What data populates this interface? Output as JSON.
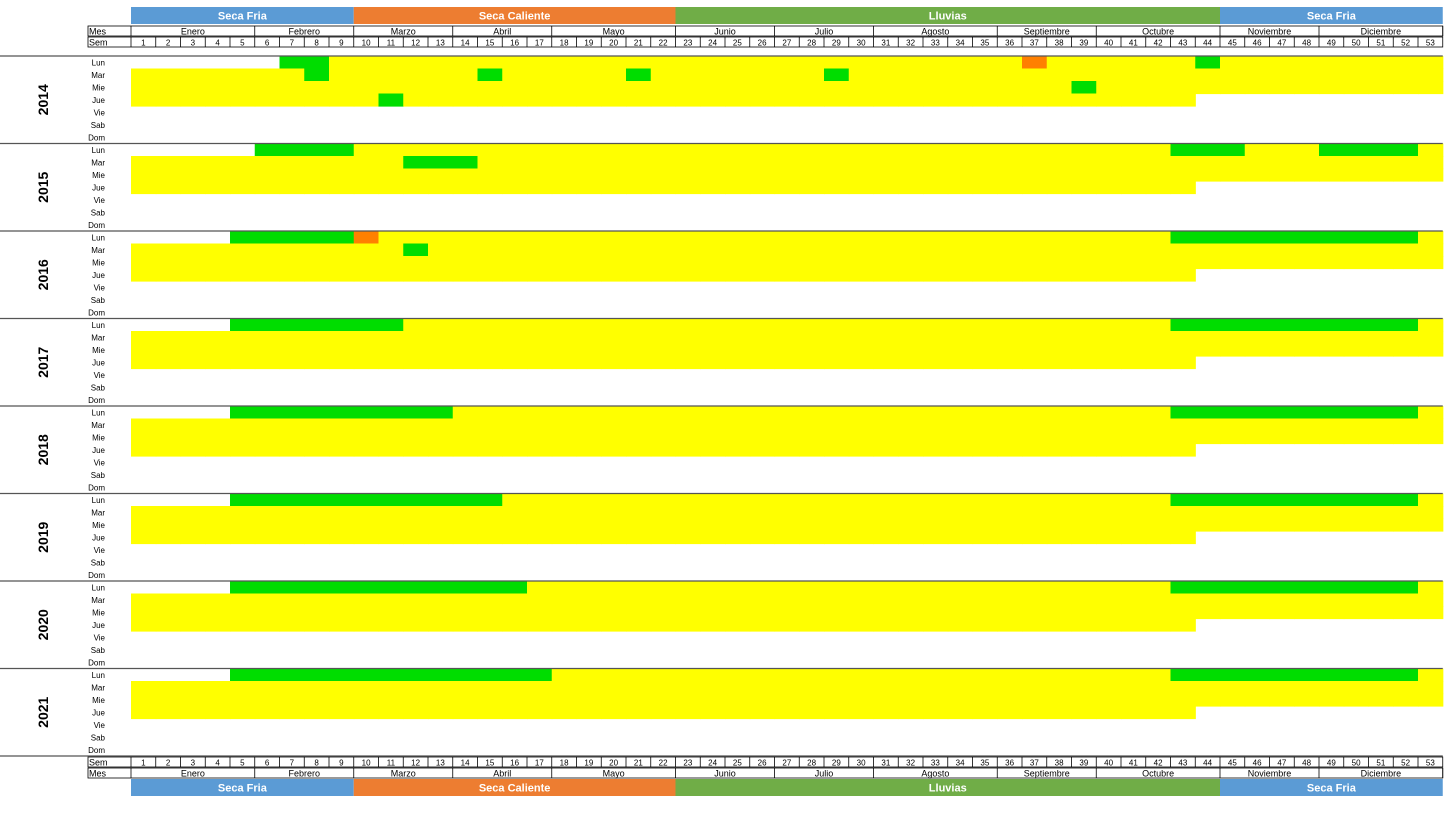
{
  "chart_data": {
    "type": "heatmap",
    "season_bands": [
      {
        "label": "Seca Fria",
        "color": "#5B9BD5",
        "weeks": [
          1,
          9
        ]
      },
      {
        "label": "Seca Caliente",
        "color": "#ED7D31",
        "weeks": [
          10,
          22
        ]
      },
      {
        "label": "Lluvias",
        "color": "#70AD47",
        "weeks": [
          23,
          44
        ]
      },
      {
        "label": "Seca Fria",
        "color": "#5B9BD5",
        "weeks": [
          45,
          53
        ]
      }
    ],
    "row_header_labels": {
      "month": "Mes",
      "week": "Sem"
    },
    "months": [
      {
        "label": "Enero",
        "weeks": [
          1,
          5
        ]
      },
      {
        "label": "Febrero",
        "weeks": [
          6,
          9
        ]
      },
      {
        "label": "Marzo",
        "weeks": [
          10,
          13
        ]
      },
      {
        "label": "Abril",
        "weeks": [
          14,
          17
        ]
      },
      {
        "label": "Mayo",
        "weeks": [
          18,
          22
        ]
      },
      {
        "label": "Junio",
        "weeks": [
          23,
          26
        ]
      },
      {
        "label": "Julio",
        "weeks": [
          27,
          30
        ]
      },
      {
        "label": "Agosto",
        "weeks": [
          31,
          35
        ]
      },
      {
        "label": "Septiembre",
        "weeks": [
          36,
          39
        ]
      },
      {
        "label": "Octubre",
        "weeks": [
          40,
          44
        ]
      },
      {
        "label": "Noviembre",
        "weeks": [
          45,
          48
        ]
      },
      {
        "label": "Diciembre",
        "weeks": [
          49,
          53
        ]
      }
    ],
    "weeks": [
      1,
      2,
      3,
      4,
      5,
      6,
      7,
      8,
      9,
      10,
      11,
      12,
      13,
      14,
      15,
      16,
      17,
      18,
      19,
      20,
      21,
      22,
      23,
      24,
      25,
      26,
      27,
      28,
      29,
      30,
      31,
      32,
      33,
      34,
      35,
      36,
      37,
      38,
      39,
      40,
      41,
      42,
      43,
      44,
      45,
      46,
      47,
      48,
      49,
      50,
      51,
      52,
      53
    ],
    "days": [
      "Lun",
      "Mar",
      "Mie",
      "Jue",
      "Vie",
      "Sab",
      "Dom"
    ],
    "years": [
      "2014",
      "2015",
      "2016",
      "2017",
      "2018",
      "2019",
      "2020",
      "2021"
    ],
    "legend": {
      "0": "#FFFFFF",
      "1": "#00DD00",
      "2": "#FFFF00",
      "3": "#FF8000"
    },
    "grid_rows": [
      "0000001122222222222222222222222222223222222122222222222222221222222122222122222221222222222222222222222222222222222222222222222222222222222222221222222222222222222222222122222222222222222222222222222222",
      "0000011112222222222222222222222222222222221112221111222222222222111222222222222222222222222222222222222222222222222222222222222222222222222222222222222222222222222222222222222222222222222222222222222222",
      "0000111113222222222222222222222222222222221111111111222222222222122222222222222222222222222222222222222222222222222222222222222222222222222222222222222222222222222222222222222222222222222222222222222222",
      "0000111111122222222222222222222222222222221111111111222222222222222222222222222222222222222222222222222222222222222222222222222222222222222222222222222222222222222222222222222222222222222222222222222222",
      "0000111111111222222222222222222222222222221111111111222222222222222222222222222222222222222222222222222222222222222222222222222222222222222222222222222222222222222222222222222222222222222222222222222222",
      "0000111111111112222222222222222222222222221111111111222222222222222222222222222222222222222222222222222222222222222222222222222222222222222222222222222222222222222222222222222222222222222222222222222222",
      "0000111111111111222222222222222222222222221111111111222222222222222222222222222222222222222222222222222222222222222222222222222222222222222222222222222222222222222222222222222222222222222222222222222222",
      "0000111111111111122222222222222222222222221111111111222222222222222222222222222222222222222222222222222222222222222222222222222222222222222222222222222222222222222222222222222222222222222222222222222222"
    ]
  }
}
